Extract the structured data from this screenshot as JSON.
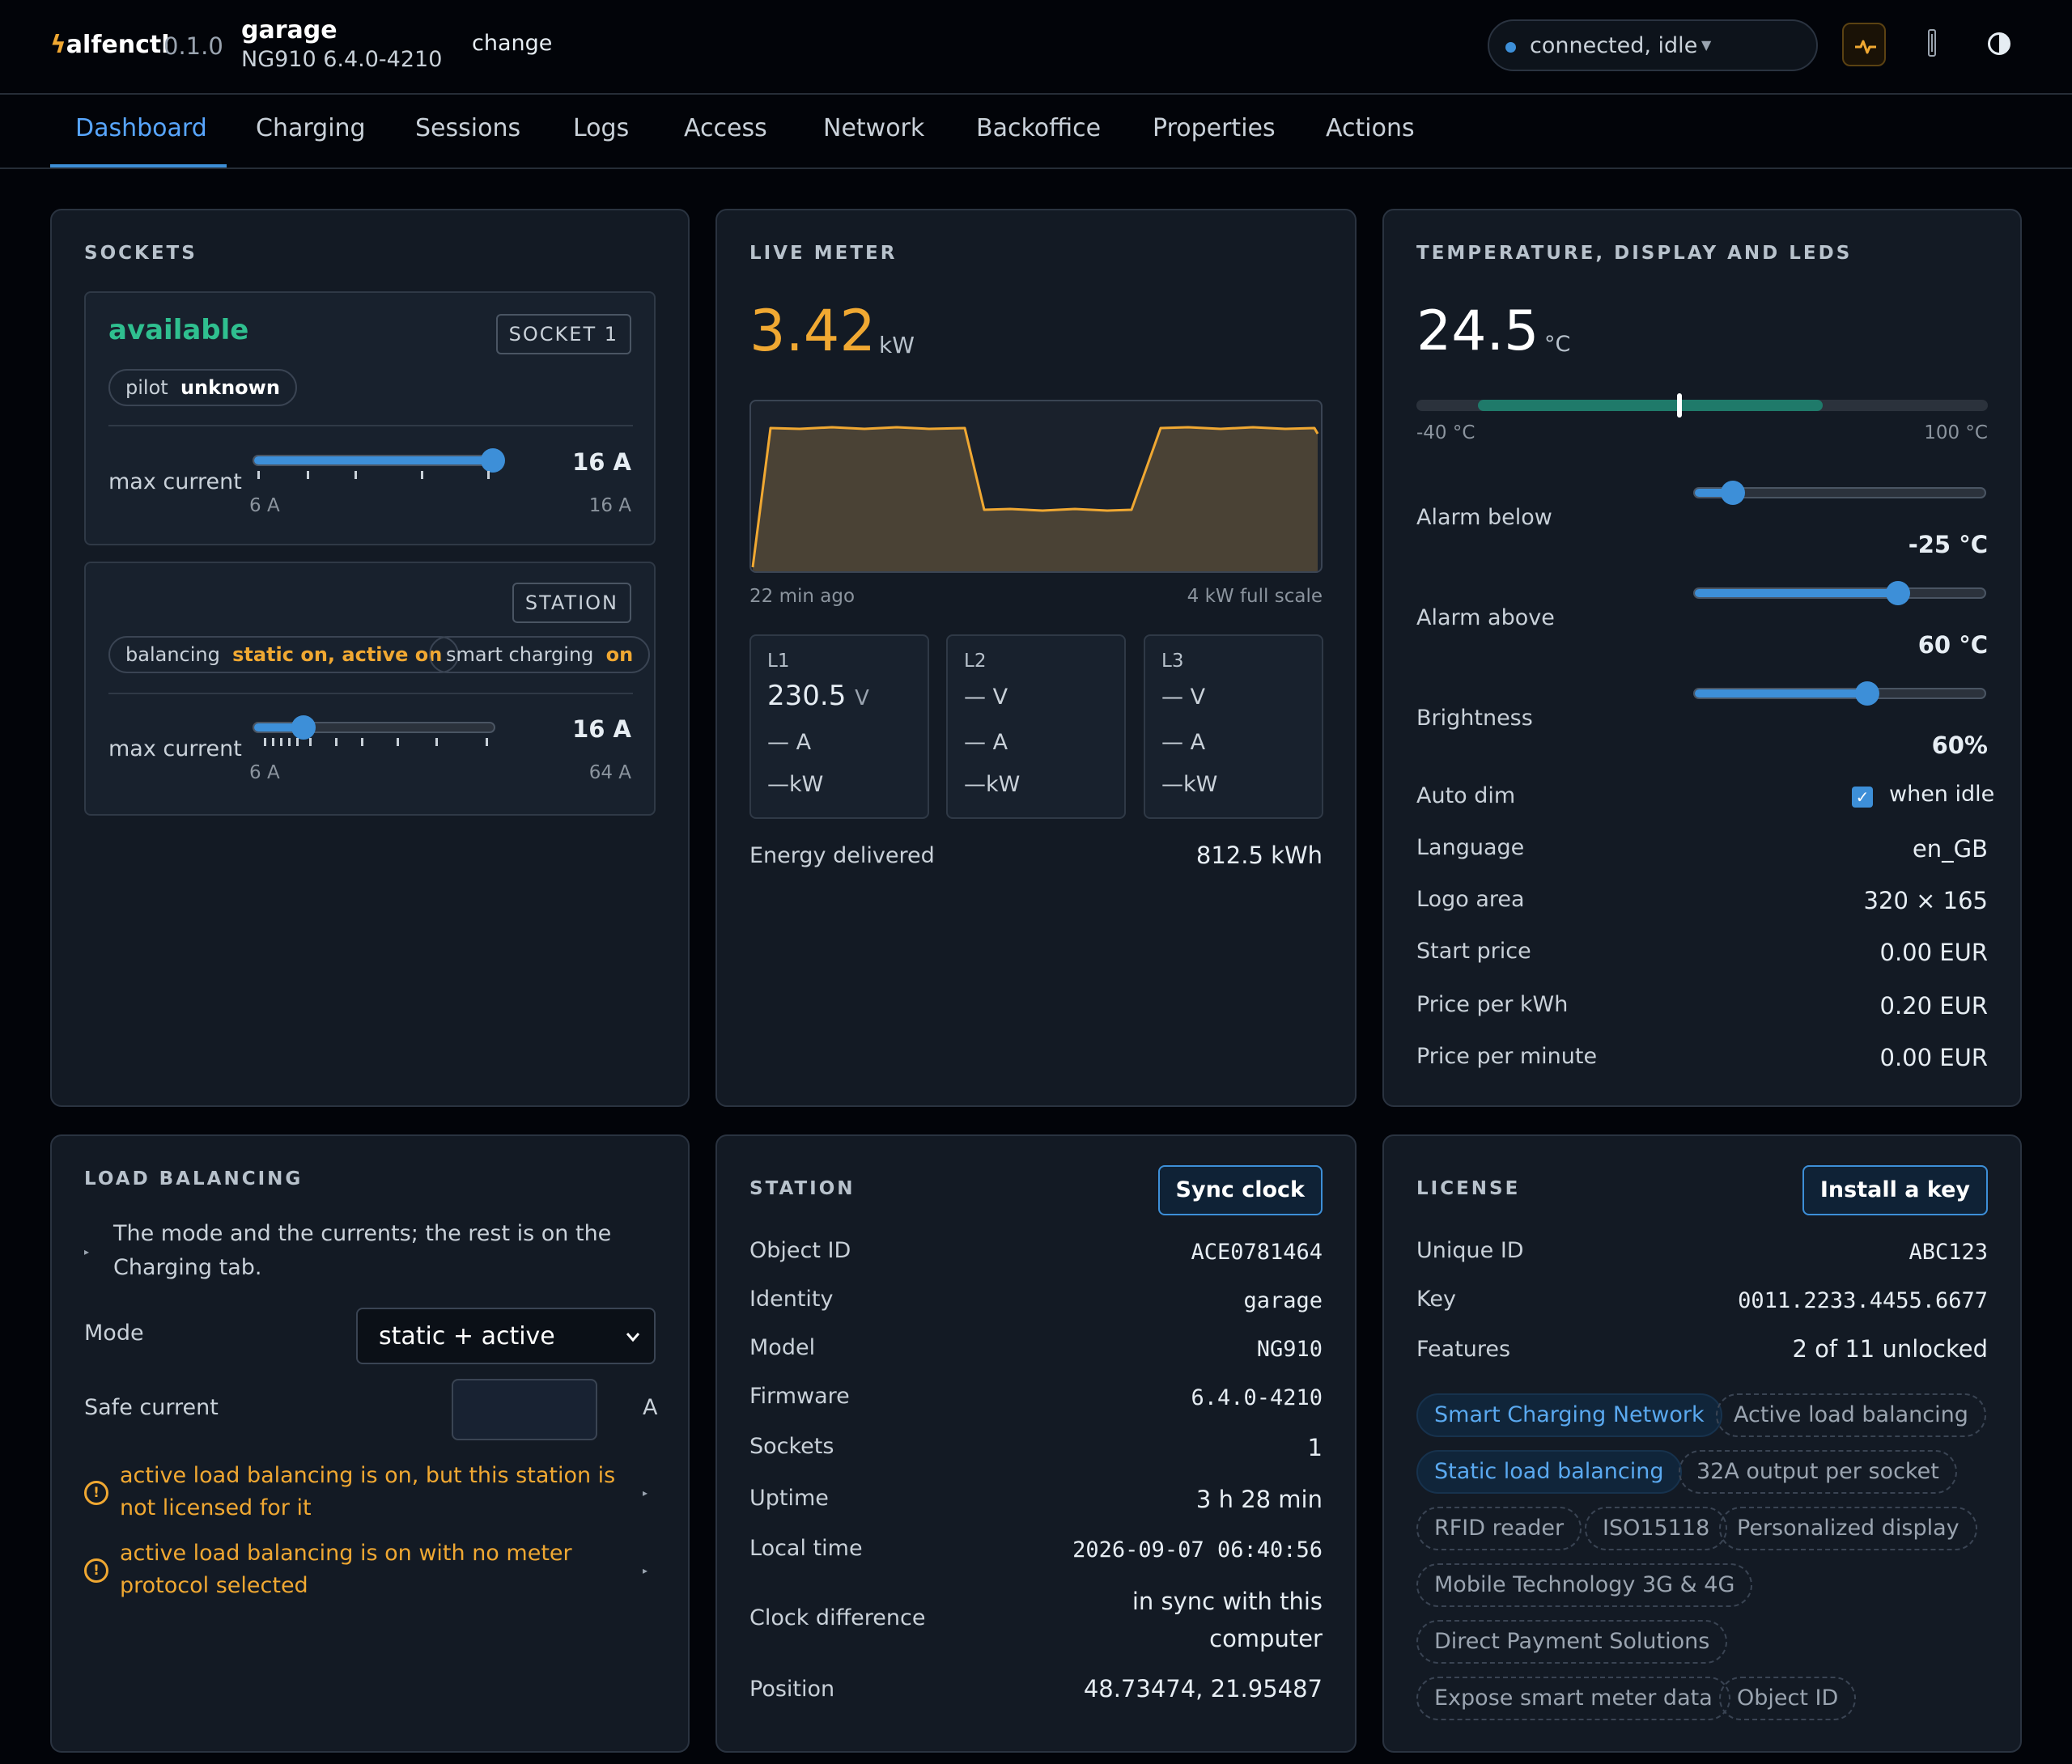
{
  "app": {
    "name": "alfenctl",
    "version": "0.1.0"
  },
  "device": {
    "name": "garage",
    "firmware": "NG910 6.4.0-4210",
    "change_label": "change"
  },
  "connection": {
    "status": "connected, idle"
  },
  "tabs": [
    "Dashboard",
    "Charging",
    "Sessions",
    "Logs",
    "Access",
    "Network",
    "Backoffice",
    "Properties",
    "Actions"
  ],
  "sockets": {
    "title": "SOCKETS",
    "socket1": {
      "state": "available",
      "tag": "SOCKET 1",
      "pilot_label": "pilot",
      "pilot_value": "unknown",
      "max_label": "max current",
      "max_value": "16 A",
      "min": "6 A",
      "max": "16 A",
      "level": 1.0
    },
    "station": {
      "tag": "STATION",
      "balancing_label": "balancing",
      "balancing_value": "static on, active on",
      "smart_label": "smart charging",
      "smart_value": "on",
      "max_label": "max current",
      "max_value": "16 A",
      "min": "6 A",
      "max": "64 A",
      "level": 0.17
    }
  },
  "live_meter": {
    "title": "LIVE METER",
    "power": "3.42",
    "unit": "kW",
    "chart_left": "22 min ago",
    "chart_right": "4 kW full scale",
    "phases": [
      {
        "name": "L1",
        "voltage": "230.5",
        "v_unit": "V",
        "current": "—",
        "a_unit": "A",
        "power": "—",
        "p_unit": "kW"
      },
      {
        "name": "L2",
        "voltage": "—",
        "v_unit": "V",
        "current": "—",
        "a_unit": "A",
        "power": "—",
        "p_unit": "kW"
      },
      {
        "name": "L3",
        "voltage": "—",
        "v_unit": "V",
        "current": "—",
        "a_unit": "A",
        "power": "—",
        "p_unit": "kW"
      }
    ],
    "energy_label": "Energy delivered",
    "energy_value": "812.5 kWh"
  },
  "temperature": {
    "title": "TEMPERATURE, DISPLAY AND LEDS",
    "value": "24.5",
    "unit": "°C",
    "range_min": "-40 °C",
    "range_max": "100 °C",
    "alarm_below_label": "Alarm below",
    "alarm_below_value": "-25 °C",
    "alarm_above_label": "Alarm above",
    "alarm_above_value": "60 °C",
    "brightness_label": "Brightness",
    "brightness_value": "60%",
    "auto_dim_label": "Auto dim",
    "auto_dim_value": "when idle",
    "auto_dim_checked": true,
    "rows": [
      {
        "label": "Language",
        "value": "en_GB"
      },
      {
        "label": "Logo area",
        "value": "320 × 165"
      },
      {
        "label": "Start price",
        "value": "0.00 EUR"
      },
      {
        "label": "Price per kWh",
        "value": "0.20 EUR"
      },
      {
        "label": "Price per minute",
        "value": "0.00 EUR"
      }
    ]
  },
  "load_balancing": {
    "title": "LOAD BALANCING",
    "note": "The mode and the currents; the rest is on the Charging tab.",
    "mode_label": "Mode",
    "mode_value": "static + active",
    "safe_label": "Safe current",
    "safe_unit": "A",
    "warnings": [
      "active load balancing is on, but this station is not licensed for it",
      "active load balancing is on with no meter protocol selected"
    ]
  },
  "station": {
    "title": "STATION",
    "sync_button": "Sync clock",
    "rows": [
      {
        "label": "Object ID",
        "value": "ACE0781464",
        "mono": true
      },
      {
        "label": "Identity",
        "value": "garage",
        "mono": true
      },
      {
        "label": "Model",
        "value": "NG910",
        "mono": true
      },
      {
        "label": "Firmware",
        "value": "6.4.0-4210",
        "mono": true
      },
      {
        "label": "Sockets",
        "value": "1",
        "mono": false
      },
      {
        "label": "Uptime",
        "value": "3 h 28 min",
        "mono": false
      },
      {
        "label": "Local time",
        "value": "2026-09-07 06:40:56",
        "mono": true
      }
    ],
    "clock_label": "Clock difference",
    "clock_value_1": "in sync with this",
    "clock_value_2": "computer",
    "position_label": "Position",
    "position_value": "48.73474, 21.95487"
  },
  "license": {
    "title": "LICENSE",
    "install_button": "Install a key",
    "unique_label": "Unique ID",
    "unique_value": "ABC123",
    "key_label": "Key",
    "key_value": "0011.2233.4455.6677",
    "features_label": "Features",
    "features_value": "2 of 11 unlocked",
    "features": [
      {
        "name": "Smart Charging Network",
        "on": true
      },
      {
        "name": "Active load balancing",
        "on": false
      },
      {
        "name": "Static load balancing",
        "on": true
      },
      {
        "name": "32A output per socket",
        "on": false
      },
      {
        "name": "RFID reader",
        "on": false
      },
      {
        "name": "ISO15118",
        "on": false
      },
      {
        "name": "Personalized display",
        "on": false
      },
      {
        "name": "Mobile Technology 3G & 4G",
        "on": false
      },
      {
        "name": "Direct Payment Solutions",
        "on": false
      },
      {
        "name": "Expose smart meter data",
        "on": false
      },
      {
        "name": "Object ID",
        "on": false
      }
    ]
  },
  "colors": {
    "accent": "#3d8fd8",
    "warning": "#f0a832",
    "success": "#2fbf8f",
    "background": "#020409",
    "panel": "#131a24"
  }
}
